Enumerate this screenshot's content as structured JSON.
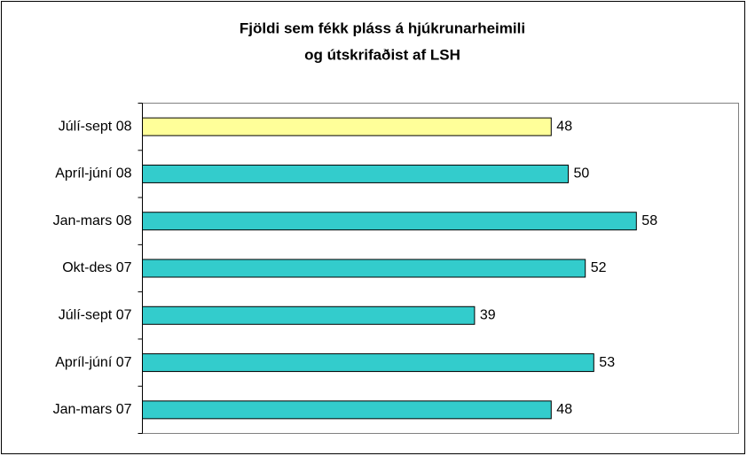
{
  "chart_data": {
    "type": "bar",
    "orientation": "horizontal",
    "title": [
      "Fjöldi  sem fékk pláss á hjúkrunarheimili",
      "og útskrifaðist af LSH"
    ],
    "categories": [
      "Júlí-sept 08",
      "Apríl-júní 08",
      "Jan-mars 08",
      "Okt-des 07",
      "Júlí-sept 07",
      "Apríl-júní 07",
      "Jan-mars 07"
    ],
    "values": [
      48,
      50,
      58,
      52,
      39,
      53,
      48
    ],
    "colors": [
      "#ffff99",
      "#33cccc",
      "#33cccc",
      "#33cccc",
      "#33cccc",
      "#33cccc",
      "#33cccc"
    ],
    "xlim": [
      0,
      70
    ]
  }
}
